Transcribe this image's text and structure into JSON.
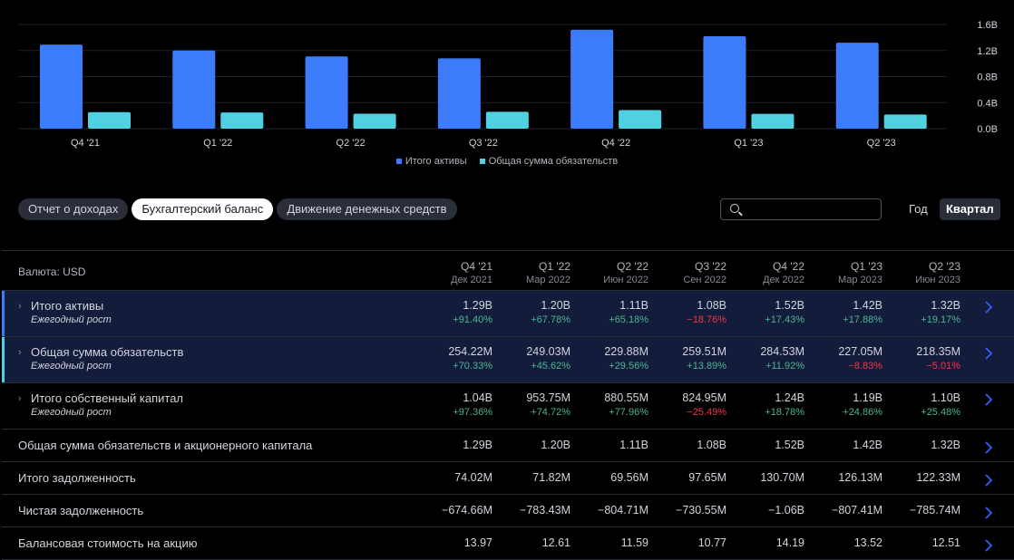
{
  "chart_data": {
    "type": "bar",
    "categories": [
      "Q4 '21",
      "Q1 '22",
      "Q2 '22",
      "Q3 '22",
      "Q4 '22",
      "Q1 '23",
      "Q2 '23"
    ],
    "series": [
      {
        "name": "Итого активы",
        "values": [
          1.29,
          1.2,
          1.11,
          1.08,
          1.52,
          1.42,
          1.32
        ],
        "color": "#3d7bfd"
      },
      {
        "name": "Общая сумма обязательств",
        "values": [
          0.254,
          0.249,
          0.23,
          0.26,
          0.285,
          0.227,
          0.218
        ],
        "color": "#4fd1e2"
      }
    ],
    "yticks": [
      "1.6B",
      "1.2B",
      "0.8B",
      "0.4B",
      "0.0B"
    ],
    "ytick_values": [
      1.6,
      1.2,
      0.8,
      0.4,
      0
    ],
    "ylim": [
      0,
      1.6
    ],
    "grid": true,
    "legend": "bottom-center"
  },
  "tabs": [
    "Отчет о доходах",
    "Бухгалтерский баланс",
    "Движение денежных средств"
  ],
  "active_tab": 1,
  "search": {
    "placeholder": ""
  },
  "period": {
    "year": "Год",
    "quarter": "Квартал"
  },
  "table": {
    "currency_label": "Валюта: USD",
    "columns": [
      {
        "quarter": "Q4 '21",
        "date": "Дек 2021"
      },
      {
        "quarter": "Q1 '22",
        "date": "Мар 2022"
      },
      {
        "quarter": "Q2 '22",
        "date": "Июн 2022"
      },
      {
        "quarter": "Q3 '22",
        "date": "Сен 2022"
      },
      {
        "quarter": "Q4 '22",
        "date": "Дек 2022"
      },
      {
        "quarter": "Q1 '23",
        "date": "Мар 2023"
      },
      {
        "quarter": "Q2 '23",
        "date": "Июн 2023"
      }
    ],
    "growth_label": "Ежегодный рост",
    "rows": [
      {
        "label": "Итого активы",
        "expandable": true,
        "highlight": true,
        "accent": "#3d7bfd",
        "values": [
          "1.29B",
          "1.20B",
          "1.11B",
          "1.08B",
          "1.52B",
          "1.42B",
          "1.32B"
        ],
        "growth": [
          "+91.40%",
          "+67.78%",
          "+65.18%",
          "−18.76%",
          "+17.43%",
          "+17.88%",
          "+19.17%"
        ]
      },
      {
        "label": "Общая сумма обязательств",
        "expandable": true,
        "highlight": true,
        "accent": "#4fd1e2",
        "values": [
          "254.22M",
          "249.03M",
          "229.88M",
          "259.51M",
          "284.53M",
          "227.05M",
          "218.35M"
        ],
        "growth": [
          "+70.33%",
          "+45.62%",
          "+29.56%",
          "+13.89%",
          "+11.92%",
          "−8.83%",
          "−5.01%"
        ]
      },
      {
        "label": "Итого собственный капитал",
        "expandable": true,
        "highlight": false,
        "values": [
          "1.04B",
          "953.75M",
          "880.55M",
          "824.95M",
          "1.24B",
          "1.19B",
          "1.10B"
        ],
        "growth": [
          "+97.36%",
          "+74.72%",
          "+77.96%",
          "−25.49%",
          "+18.78%",
          "+24.86%",
          "+25.48%"
        ]
      },
      {
        "label": "Общая сумма обязательств и акционерного капитала",
        "expandable": false,
        "values": [
          "1.29B",
          "1.20B",
          "1.11B",
          "1.08B",
          "1.52B",
          "1.42B",
          "1.32B"
        ]
      },
      {
        "label": "Итого задолженность",
        "expandable": false,
        "values": [
          "74.02M",
          "71.82M",
          "69.56M",
          "97.65M",
          "130.70M",
          "126.13M",
          "122.33M"
        ]
      },
      {
        "label": "Чистая задолженность",
        "expandable": false,
        "values": [
          "−674.66M",
          "−783.43M",
          "−804.71M",
          "−730.55M",
          "−1.06B",
          "−807.41M",
          "−785.74M"
        ]
      },
      {
        "label": "Балансовая стоимость на акцию",
        "expandable": false,
        "values": [
          "13.97",
          "12.61",
          "11.59",
          "10.77",
          "14.19",
          "13.52",
          "12.51"
        ]
      }
    ]
  }
}
